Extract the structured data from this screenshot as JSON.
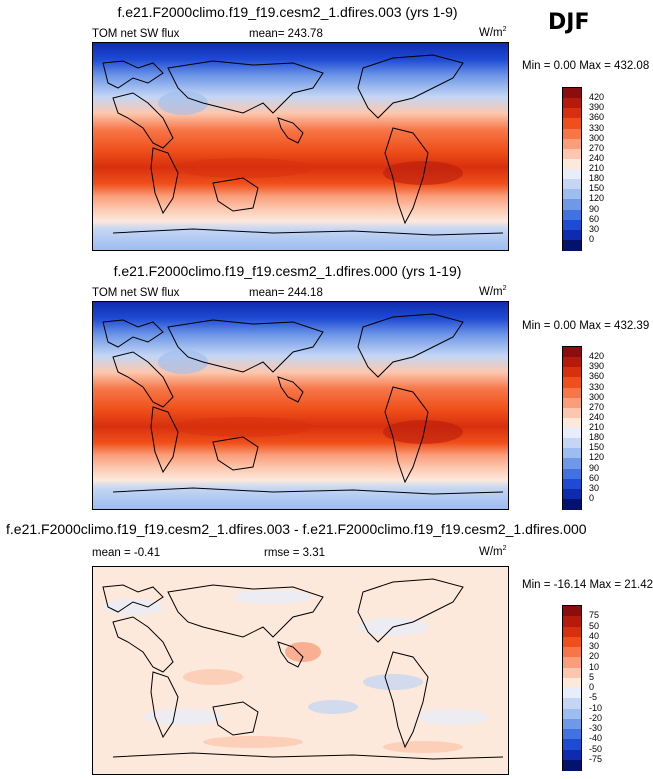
{
  "season": "DJF",
  "panels": [
    {
      "title": "f.e21.F2000climo.f19_f19.cesm2_1.dfires.003 (yrs 1-9)",
      "left_label": "TOM net SW flux",
      "center_label": "mean= 243.78",
      "units": "W/m",
      "units_sup": "2",
      "minmax": "Min =   0.00 Max = 432.08",
      "type": "abs"
    },
    {
      "title": "f.e21.F2000climo.f19_f19.cesm2_1.dfires.000 (yrs 1-19)",
      "left_label": "TOM net SW flux",
      "center_label": "mean= 244.18",
      "units": "W/m",
      "units_sup": "2",
      "minmax": "Min =   0.00 Max = 432.39",
      "type": "abs"
    },
    {
      "title": "f.e21.F2000climo.f19_f19.cesm2_1.dfires.003 - f.e21.F2000climo.f19_f19.cesm2_1.dfires.000",
      "left_label": "mean =  -0.41",
      "center_label": "rmse =   3.31",
      "units": "W/m",
      "units_sup": "2",
      "minmax": "Min = -16.14 Max =  21.42",
      "type": "diff"
    }
  ],
  "colorbars": {
    "abs": {
      "labels": [
        "420",
        "390",
        "360",
        "330",
        "300",
        "270",
        "240",
        "210",
        "180",
        "150",
        "120",
        "90",
        "60",
        "30",
        "0"
      ],
      "colors": [
        "#8b0d0d",
        "#b61a0b",
        "#d8300e",
        "#ef4f1a",
        "#f77648",
        "#fa9d7a",
        "#fcc7ae",
        "#fde8dc",
        "#e7eefa",
        "#c4d6f4",
        "#9dbcef",
        "#6f98e8",
        "#4172e2",
        "#1f4bd4",
        "#0e2bb0",
        "#04126e"
      ]
    },
    "diff": {
      "labels": [
        "75",
        "50",
        "40",
        "30",
        "20",
        "10",
        "5",
        "0",
        "-5",
        "-10",
        "-20",
        "-30",
        "-40",
        "-50",
        "-75"
      ],
      "colors": [
        "#8b0d0d",
        "#b61a0b",
        "#d8300e",
        "#ef4f1a",
        "#f77648",
        "#fa9d7a",
        "#fcc7ae",
        "#fde8dc",
        "#e7eefa",
        "#c4d6f4",
        "#9dbcef",
        "#6f98e8",
        "#4172e2",
        "#1f4bd4",
        "#0e2bb0",
        "#04126e"
      ]
    }
  }
}
